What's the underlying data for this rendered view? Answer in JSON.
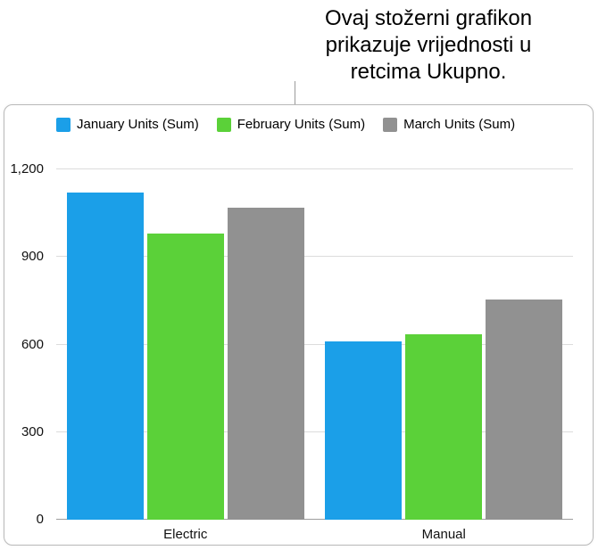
{
  "annotation": {
    "lines": [
      "Ovaj stožerni grafikon",
      "prikazuje vrijednosti u",
      "retcima Ukupno."
    ],
    "text": "Ovaj stožerni grafikon prikazuje vrijednosti u retcima Ukupno."
  },
  "chart_data": {
    "type": "bar",
    "title": "",
    "xlabel": "",
    "ylabel": "",
    "categories": [
      "Electric",
      "Manual"
    ],
    "series": [
      {
        "name": "January Units (Sum)",
        "color": "#1b9fe8",
        "values": [
          1120,
          610
        ]
      },
      {
        "name": "February Units (Sum)",
        "color": "#5bd139",
        "values": [
          980,
          635
        ]
      },
      {
        "name": "March Units (Sum)",
        "color": "#919191",
        "values": [
          1070,
          755
        ]
      }
    ],
    "ylim": [
      0,
      1200
    ],
    "yticks": [
      0,
      300,
      600,
      900,
      1200
    ],
    "ytick_labels": [
      "0",
      "300",
      "600",
      "900",
      "1,200"
    ],
    "grid": true,
    "legend_position": "top"
  }
}
